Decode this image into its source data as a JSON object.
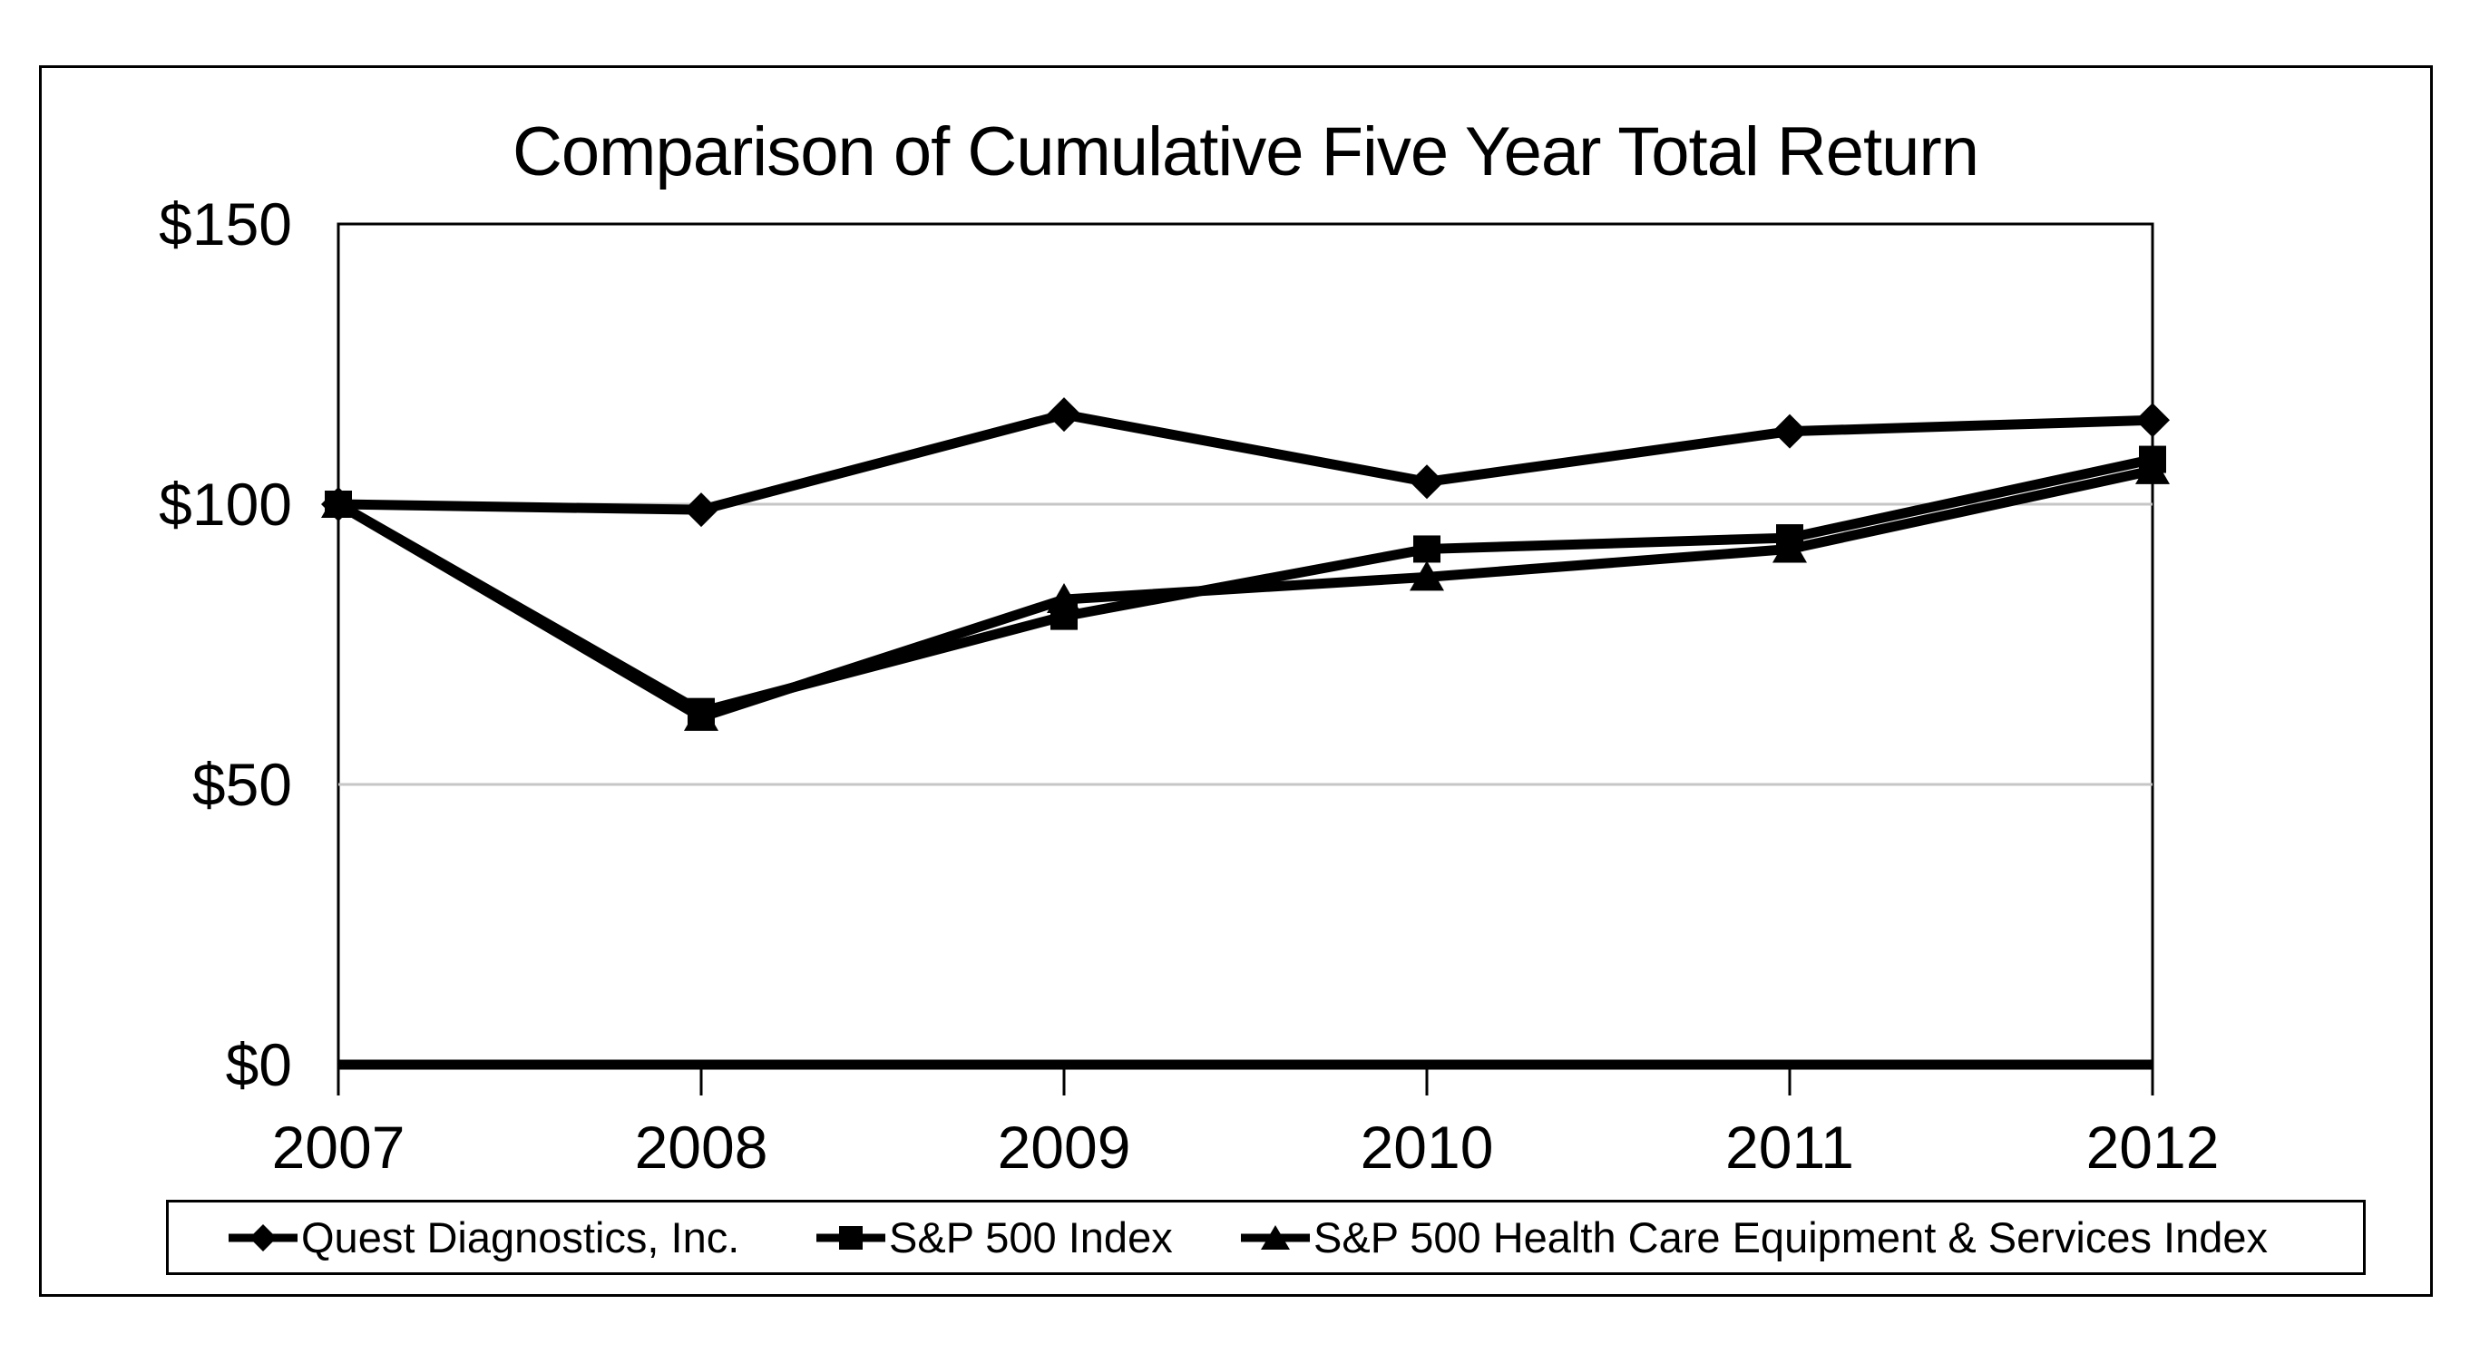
{
  "chart_data": {
    "type": "line",
    "title": "Comparison of Cumulative Five Year Total Return",
    "categories": [
      "2007",
      "2008",
      "2009",
      "2010",
      "2011",
      "2012"
    ],
    "series": [
      {
        "name": "Quest Diagnostics, Inc.",
        "marker": "diamond",
        "values": [
          100,
          99,
          116,
          104,
          113,
          115
        ]
      },
      {
        "name": "S&P 500 Index",
        "marker": "square",
        "values": [
          100,
          63,
          80,
          92,
          94,
          108
        ]
      },
      {
        "name": "S&P 500 Health Care Equipment & Services Index",
        "marker": "triangle",
        "values": [
          100,
          62,
          83,
          87,
          92,
          106
        ]
      }
    ],
    "ylim": [
      0,
      150
    ],
    "yticks": [
      "$150",
      "$100",
      "$50",
      "$0"
    ],
    "ytick_values": [
      150,
      100,
      50,
      0
    ],
    "gridline_values": [
      100,
      50
    ],
    "legend_position": "bottom",
    "line_color": "#000000",
    "gridline_color": "#c6c6c6",
    "axis_color": "#000000",
    "background_color": "#ffffff",
    "xlabel": "",
    "ylabel": ""
  }
}
